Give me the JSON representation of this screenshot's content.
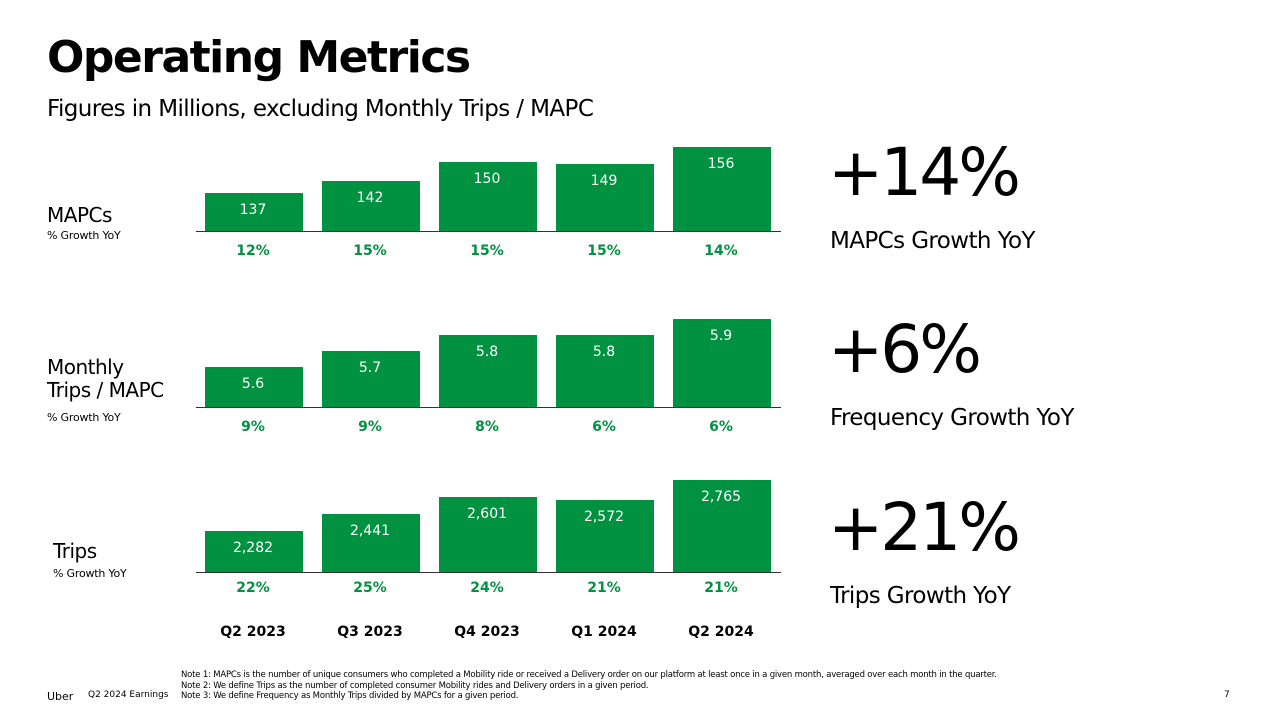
{
  "title": "Operating Metrics",
  "subtitle": "Figures in Millions, excluding Monthly Trips / MAPC",
  "chart_data": [
    {
      "type": "bar",
      "title": "MAPCs",
      "sublabel": "% Growth YoY",
      "categories": [
        "Q2 2023",
        "Q3 2023",
        "Q4 2023",
        "Q1 2024",
        "Q2 2024"
      ],
      "values": [
        137,
        142,
        150,
        149,
        156
      ],
      "value_labels": [
        "137",
        "142",
        "150",
        "149",
        "156"
      ],
      "growth_labels": [
        "12%",
        "15%",
        "15%",
        "15%",
        "14%"
      ],
      "ylim": [
        0,
        156
      ]
    },
    {
      "type": "bar",
      "title_lines": [
        "Monthly",
        "Trips / MAPC"
      ],
      "sublabel": "% Growth YoY",
      "categories": [
        "Q2 2023",
        "Q3 2023",
        "Q4 2023",
        "Q1 2024",
        "Q2 2024"
      ],
      "values": [
        5.6,
        5.7,
        5.8,
        5.8,
        5.9
      ],
      "value_labels": [
        "5.6",
        "5.7",
        "5.8",
        "5.8",
        "5.9"
      ],
      "growth_labels": [
        "9%",
        "9%",
        "8%",
        "6%",
        "6%"
      ],
      "ylim": [
        0,
        5.9
      ]
    },
    {
      "type": "bar",
      "title": "Trips",
      "sublabel": "% Growth YoY",
      "categories": [
        "Q2 2023",
        "Q3 2023",
        "Q4 2023",
        "Q1 2024",
        "Q2 2024"
      ],
      "values": [
        2282,
        2441,
        2601,
        2572,
        2765
      ],
      "value_labels": [
        "2,282",
        "2,441",
        "2,601",
        "2,572",
        "2,765"
      ],
      "growth_labels": [
        "22%",
        "25%",
        "24%",
        "21%",
        "21%"
      ],
      "ylim": [
        0,
        2765
      ]
    }
  ],
  "categories": [
    "Q2 2023",
    "Q3 2023",
    "Q4 2023",
    "Q1 2024",
    "Q2 2024"
  ],
  "kpis": [
    {
      "value": "+14%",
      "label": "MAPCs Growth YoY"
    },
    {
      "value": "+6%",
      "label": "Frequency Growth YoY"
    },
    {
      "value": "+21%",
      "label": "Trips Growth YoY"
    }
  ],
  "footer": {
    "brand": "Uber",
    "doc": "Q2 2024 Earnings",
    "page": "7",
    "notes": [
      "Note 1: MAPCs is the number of unique consumers who completed a Mobility ride or received a Delivery order on our platform at least once in a given month, averaged over each month in the quarter.",
      "Note 2: We define Trips as the number of completed consumer Mobility rides and Delivery orders in a given period.",
      "Note 3: We define Frequency as Monthly Trips divided by MAPCs for a given period."
    ]
  },
  "colors": {
    "accent": "#009141",
    "text": "#000000"
  }
}
